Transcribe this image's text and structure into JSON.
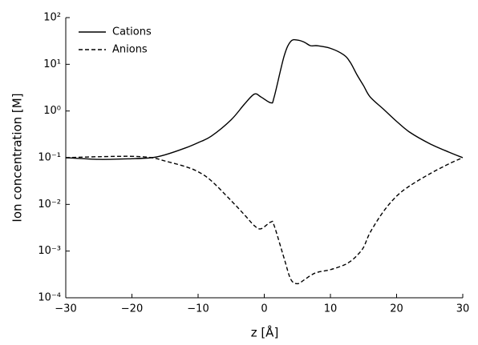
{
  "chart_data": {
    "type": "line",
    "x_label": "z [Å]",
    "y_label": "Ion concentration [M]",
    "x": [
      -30,
      -25,
      -20,
      -17,
      -15,
      -12,
      -10,
      -8,
      -5,
      -3,
      -1.5,
      -0.5,
      1,
      1.5,
      3,
      4,
      5,
      6,
      7,
      8,
      10,
      12,
      13,
      14,
      15,
      16,
      18,
      20,
      22,
      25,
      28,
      30
    ],
    "series": [
      {
        "name": "Cations",
        "color": "#000000",
        "dash": "solid",
        "values": [
          0.1,
          0.092,
          0.095,
          0.1,
          0.115,
          0.16,
          0.21,
          0.29,
          0.65,
          1.4,
          2.3,
          2.0,
          1.5,
          2.0,
          15,
          31,
          33,
          30,
          25,
          25,
          22,
          16,
          11,
          6,
          3.5,
          2.0,
          1.1,
          0.6,
          0.35,
          0.2,
          0.13,
          0.1
        ]
      },
      {
        "name": "Anions",
        "color": "#000000",
        "dash": "dashed",
        "values": [
          0.1,
          0.105,
          0.107,
          0.1,
          0.085,
          0.065,
          0.05,
          0.032,
          0.012,
          0.006,
          0.0035,
          0.003,
          0.0042,
          0.0035,
          0.0007,
          0.00025,
          0.0002,
          0.00024,
          0.0003,
          0.00035,
          0.0004,
          0.0005,
          0.0006,
          0.0008,
          0.0012,
          0.0025,
          0.007,
          0.015,
          0.025,
          0.045,
          0.075,
          0.1
        ]
      }
    ],
    "xlim": [
      -30,
      30
    ],
    "xticks": [
      {
        "value": -30,
        "label": "−30"
      },
      {
        "value": -20,
        "label": "−20"
      },
      {
        "value": -10,
        "label": "−10"
      },
      0,
      10,
      20,
      30
    ],
    "ylim": [
      0.0001,
      100
    ],
    "log_y": true,
    "yticks": [
      {
        "value": 0.0001,
        "label": "10⁻⁴"
      },
      {
        "value": 0.001,
        "label": "10⁻³"
      },
      {
        "value": 0.01,
        "label": "10⁻²"
      },
      {
        "value": 0.1,
        "label": "10⁻¹"
      },
      {
        "value": 1,
        "label": "10⁰"
      },
      {
        "value": 10,
        "label": "10¹"
      },
      {
        "value": 100,
        "label": "10²"
      }
    ],
    "grid": false,
    "legend": "upper-left"
  }
}
